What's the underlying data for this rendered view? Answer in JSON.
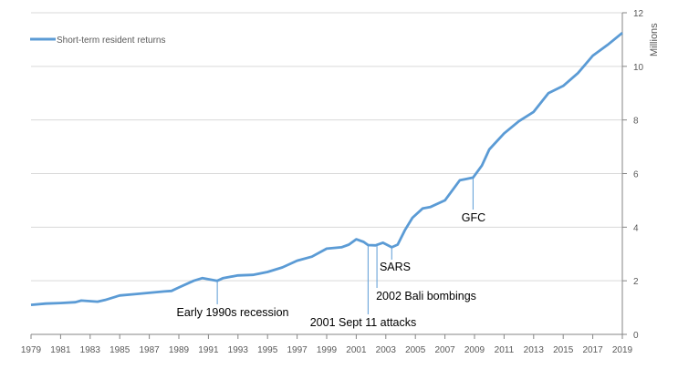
{
  "chart_data": {
    "type": "line",
    "title": "",
    "xlabel": "",
    "ylabel": "Millions",
    "xlim": [
      1979,
      2019
    ],
    "ylim": [
      0,
      12
    ],
    "y_axis_position": "right",
    "grid": true,
    "legend_position": "top-left",
    "x_ticks": [
      "1979",
      "1981",
      "1983",
      "1985",
      "1987",
      "1989",
      "1991",
      "1993",
      "1995",
      "1997",
      "1999",
      "2001",
      "2003",
      "2005",
      "2007",
      "2009",
      "2011",
      "2013",
      "2015",
      "2017",
      "2019"
    ],
    "y_ticks": [
      "0",
      "2",
      "4",
      "6",
      "8",
      "10",
      "12"
    ],
    "series": [
      {
        "name": "Short-term resident returns",
        "color": "#5b9bd5",
        "x": [
          1979,
          1980,
          1981,
          1982,
          1982.4,
          1983.5,
          1984,
          1985,
          1986,
          1987,
          1988,
          1988.5,
          1989,
          1990,
          1990.6,
          1991.6,
          1992,
          1993,
          1994,
          1995,
          1996,
          1997,
          1998,
          1999,
          2000,
          2000.5,
          2001,
          2001.5,
          2001.8,
          2002.3,
          2002.8,
          2003.4,
          2003.8,
          2004.3,
          2004.8,
          2005.5,
          2006,
          2007,
          2008,
          2008.9,
          2009.5,
          2010,
          2011,
          2012,
          2013,
          2014,
          2015,
          2016,
          2017,
          2018,
          2019
        ],
        "y": [
          1.1,
          1.15,
          1.17,
          1.2,
          1.26,
          1.22,
          1.28,
          1.45,
          1.5,
          1.55,
          1.6,
          1.62,
          1.75,
          2.0,
          2.1,
          2.0,
          2.1,
          2.2,
          2.22,
          2.33,
          2.5,
          2.75,
          2.9,
          3.2,
          3.25,
          3.35,
          3.55,
          3.45,
          3.33,
          3.32,
          3.42,
          3.25,
          3.35,
          3.9,
          4.35,
          4.7,
          4.75,
          5.0,
          5.75,
          5.85,
          6.3,
          6.9,
          7.5,
          7.95,
          8.3,
          9.0,
          9.27,
          9.75,
          10.4,
          10.8,
          11.25
        ]
      }
    ],
    "annotations": [
      {
        "text": "Early 1990s recession",
        "x": 1991.6,
        "y": 2.0
      },
      {
        "text": "2001 Sept 11 attacks",
        "x": 2001.8,
        "y": 3.35
      },
      {
        "text": "2002  Bali bombings",
        "x": 2002.4,
        "y": 3.32
      },
      {
        "text": "SARS",
        "x": 2003.4,
        "y": 3.25
      },
      {
        "text": "GFC",
        "x": 2008.9,
        "y": 5.85
      }
    ]
  }
}
